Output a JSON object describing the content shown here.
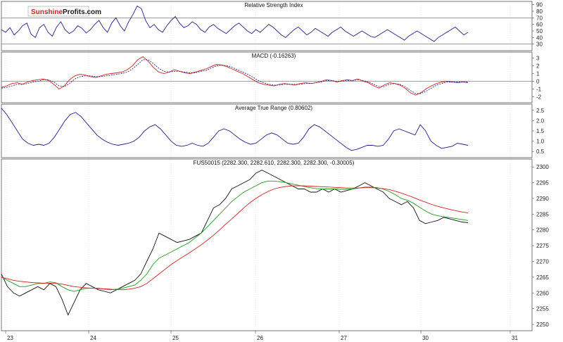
{
  "logo": {
    "part1": "Sunshine",
    "part2": "Profits",
    "part3": ".com",
    "color1": "#d42020",
    "color2": "#1a1a1a"
  },
  "colors": {
    "line": "#1f1f8f",
    "macd_signal": "#d42020",
    "macd_main": "#2a2aa0",
    "ma_fast": "#1e9a1e",
    "ma_slow": "#d42020",
    "price": "#111111",
    "grid": "#cfcfcf",
    "frame": "#555555"
  },
  "x_axis": {
    "labels": [
      "23",
      "24",
      "25",
      "26",
      "27",
      "30",
      "31"
    ]
  },
  "chart_data": [
    {
      "type": "line",
      "title": "Relative Strength Index",
      "ylim": [
        20,
        95
      ],
      "yticks": [
        "90",
        "80",
        "70",
        "60",
        "50",
        "40",
        "30"
      ],
      "levels": [
        70,
        30
      ],
      "series": [
        {
          "values": [
            52,
            48,
            55,
            44,
            50,
            58,
            62,
            45,
            40,
            55,
            60,
            48,
            42,
            56,
            64,
            52,
            46,
            50,
            58,
            54,
            47,
            52,
            60,
            66,
            55,
            48,
            62,
            70,
            58,
            50,
            64,
            75,
            88,
            84,
            66,
            55,
            60,
            52,
            48,
            58,
            66,
            72,
            62,
            55,
            58,
            64,
            60,
            52,
            48,
            56,
            60,
            54,
            50,
            46,
            52,
            58,
            62,
            56,
            50,
            46,
            52,
            48,
            54,
            60,
            56,
            50,
            44,
            40,
            46,
            52,
            56,
            50,
            44,
            48,
            54,
            50,
            46,
            42,
            48,
            52,
            56,
            50,
            46,
            42,
            46,
            50,
            46,
            42,
            40,
            44,
            48,
            52,
            48,
            44,
            40,
            36,
            42,
            46,
            50,
            46,
            42,
            38,
            34,
            40,
            44,
            48,
            52,
            56,
            50,
            44,
            48
          ]
        }
      ]
    },
    {
      "type": "line",
      "title": "MACD (-0.16263)",
      "ylim": [
        -2.8,
        3.8
      ],
      "yticks": [
        "3",
        "2",
        "1",
        "0",
        "-1",
        "-2"
      ],
      "levels": [
        0
      ],
      "series": [
        {
          "values": [
            -0.8,
            -0.6,
            -0.3,
            -0.2,
            -0.4,
            -0.1,
            0.1,
            0.2,
            0.3,
            0.1,
            -0.4,
            -1.0,
            -0.6,
            0.2,
            0.7,
            0.9,
            0.8,
            0.6,
            0.5,
            0.7,
            0.9,
            1.0,
            1.1,
            1.2,
            1.5,
            2.0,
            2.8,
            3.2,
            2.6,
            1.8,
            1.2,
            1.0,
            1.2,
            1.5,
            1.3,
            1.1,
            1.0,
            1.2,
            1.4,
            1.6,
            1.9,
            2.2,
            2.1,
            1.9,
            1.6,
            1.3,
            1.0,
            0.6,
            0.2,
            -0.2,
            -0.4,
            -0.5,
            -0.6,
            -0.4,
            -0.3,
            -0.4,
            -0.5,
            -0.3,
            -0.2,
            -0.3,
            -0.2,
            0.0,
            0.2,
            0.1,
            -0.1,
            0.1,
            0.2,
            0.1,
            0.3,
            0.0,
            -0.2,
            -0.6,
            -0.9,
            -0.5,
            -0.2,
            -0.3,
            -0.5,
            -0.9,
            -1.5,
            -1.8,
            -1.5,
            -1.0,
            -0.6,
            -0.3,
            -0.1,
            0.0,
            -0.1,
            -0.2,
            -0.1,
            -0.2
          ]
        },
        {
          "values": [
            -0.9,
            -0.8,
            -0.6,
            -0.4,
            -0.4,
            -0.3,
            -0.1,
            0.0,
            0.2,
            0.2,
            -0.1,
            -0.6,
            -0.7,
            -0.3,
            0.3,
            0.6,
            0.7,
            0.7,
            0.6,
            0.6,
            0.7,
            0.8,
            0.9,
            1.0,
            1.2,
            1.6,
            2.2,
            2.8,
            2.8,
            2.3,
            1.7,
            1.3,
            1.2,
            1.3,
            1.3,
            1.2,
            1.1,
            1.1,
            1.3,
            1.4,
            1.7,
            2.0,
            2.1,
            2.0,
            1.8,
            1.5,
            1.2,
            0.9,
            0.5,
            0.1,
            -0.2,
            -0.4,
            -0.5,
            -0.5,
            -0.4,
            -0.4,
            -0.4,
            -0.4,
            -0.3,
            -0.3,
            -0.2,
            -0.1,
            0.1,
            0.1,
            0.0,
            0.0,
            0.1,
            0.1,
            0.2,
            0.1,
            -0.1,
            -0.4,
            -0.7,
            -0.7,
            -0.4,
            -0.3,
            -0.4,
            -0.7,
            -1.2,
            -1.6,
            -1.6,
            -1.3,
            -0.9,
            -0.5,
            -0.3,
            -0.1,
            -0.1,
            -0.1,
            -0.1,
            -0.1
          ]
        }
      ]
    },
    {
      "type": "line",
      "title": "Average True Range (0.80602)",
      "ylim": [
        0.2,
        2.8
      ],
      "yticks": [
        "2.5",
        "2.0",
        "1.5",
        "1.0",
        "0.5"
      ],
      "series": [
        {
          "values": [
            2.6,
            2.3,
            1.9,
            1.5,
            1.1,
            0.9,
            0.8,
            0.85,
            0.8,
            0.9,
            1.2,
            1.6,
            2.0,
            2.3,
            2.4,
            2.2,
            1.9,
            1.6,
            1.3,
            1.1,
            0.95,
            0.85,
            0.8,
            0.85,
            0.9,
            1.0,
            1.2,
            1.5,
            1.7,
            1.8,
            1.6,
            1.3,
            1.0,
            0.8,
            0.75,
            0.8,
            0.9,
            0.8,
            0.75,
            0.9,
            1.2,
            1.5,
            1.6,
            1.5,
            1.3,
            1.1,
            0.95,
            0.85,
            0.9,
            1.1,
            1.3,
            1.4,
            1.3,
            1.1,
            0.9,
            0.85,
            0.9,
            1.2,
            1.6,
            1.8,
            1.7,
            1.5,
            1.3,
            1.1,
            0.9,
            0.7,
            0.55,
            0.6,
            0.7,
            0.8,
            0.8,
            0.75,
            0.8,
            1.1,
            1.5,
            1.6,
            1.5,
            1.4,
            1.3,
            1.8,
            1.5,
            1.0,
            0.8,
            0.65,
            0.7,
            0.75,
            0.9,
            0.85,
            0.8
          ]
        }
      ]
    },
    {
      "type": "line",
      "title": "FUS50015 (2282.300, 2282.610, 2282.300, 2282.300, -0.30005)",
      "ylim": [
        2248,
        2302.5
      ],
      "yticks": [
        "2300",
        "2295",
        "2290",
        "2285",
        "2280",
        "2275",
        "2270",
        "2265",
        "2260",
        "2255",
        "2250"
      ],
      "series": [
        {
          "values": [
            2266,
            2262,
            2260,
            2259,
            2260,
            2261,
            2262,
            2261,
            2263,
            2262,
            2258,
            2253,
            2257,
            2261,
            2263,
            2262,
            2261,
            2260.5,
            2260,
            2261,
            2262,
            2263,
            2264,
            2266,
            2270,
            2274,
            2279,
            2278,
            2277,
            2276,
            2276.5,
            2277,
            2278,
            2279,
            2283,
            2287,
            2288,
            2290,
            2293,
            2294,
            2295,
            2296,
            2298,
            2299,
            2298,
            2297,
            2296,
            2295,
            2294,
            2293,
            2293,
            2292,
            2292,
            2293,
            2292,
            2293,
            2292,
            2292.5,
            2293,
            2294,
            2295,
            2294,
            2293,
            2292,
            2290,
            2289,
            2288,
            2289,
            2287,
            2283,
            2282,
            2282.5,
            2283,
            2284,
            2283.5,
            2283,
            2282.5,
            2282.3
          ]
        },
        {
          "values": [
            2265,
            2264,
            2263,
            2262,
            2262,
            2262.5,
            2263,
            2263,
            2263.5,
            2263.2,
            2262,
            2261,
            2260.5,
            2261,
            2261.5,
            2261.5,
            2261.5,
            2261.2,
            2261,
            2261.2,
            2261.5,
            2262,
            2262.5,
            2264,
            2266,
            2269,
            2271,
            2272,
            2273,
            2274,
            2275,
            2276,
            2277.5,
            2279,
            2281,
            2283,
            2285,
            2287,
            2289,
            2290.5,
            2292,
            2293,
            2294,
            2295,
            2295.5,
            2295.5,
            2295.3,
            2295,
            2294.6,
            2294.2,
            2293.8,
            2293.4,
            2293.1,
            2293,
            2293,
            2293,
            2292.9,
            2292.9,
            2293,
            2293.3,
            2293.6,
            2293.6,
            2293.4,
            2293,
            2292.2,
            2291.2,
            2290,
            2289.4,
            2288.5,
            2287.2,
            2286,
            2285,
            2284.5,
            2284.2,
            2283.9,
            2283.6,
            2283.3,
            2283
          ]
        },
        {
          "values": [
            2265,
            2264.5,
            2264,
            2263.7,
            2263.5,
            2263.3,
            2263.2,
            2263.1,
            2263.1,
            2263,
            2262.8,
            2262.4,
            2262,
            2261.8,
            2261.6,
            2261.5,
            2261.4,
            2261.3,
            2261.2,
            2261.1,
            2261,
            2261.2,
            2261.5,
            2262,
            2263,
            2264.5,
            2266,
            2267.5,
            2269,
            2270.3,
            2271.5,
            2272.7,
            2274,
            2275.3,
            2276.8,
            2278.3,
            2280,
            2281.8,
            2283.5,
            2285.2,
            2287,
            2288.6,
            2290,
            2291.2,
            2292.2,
            2293,
            2293.5,
            2293.8,
            2294,
            2294,
            2294,
            2293.9,
            2293.8,
            2293.7,
            2293.6,
            2293.5,
            2293.4,
            2293.3,
            2293.3,
            2293.3,
            2293.4,
            2293.4,
            2293.3,
            2293.1,
            2292.8,
            2292.3,
            2291.7,
            2291,
            2290.3,
            2289.5,
            2288.8,
            2288.1,
            2287.5,
            2287,
            2286.5,
            2286.1,
            2285.7,
            2285.4
          ]
        }
      ]
    }
  ]
}
